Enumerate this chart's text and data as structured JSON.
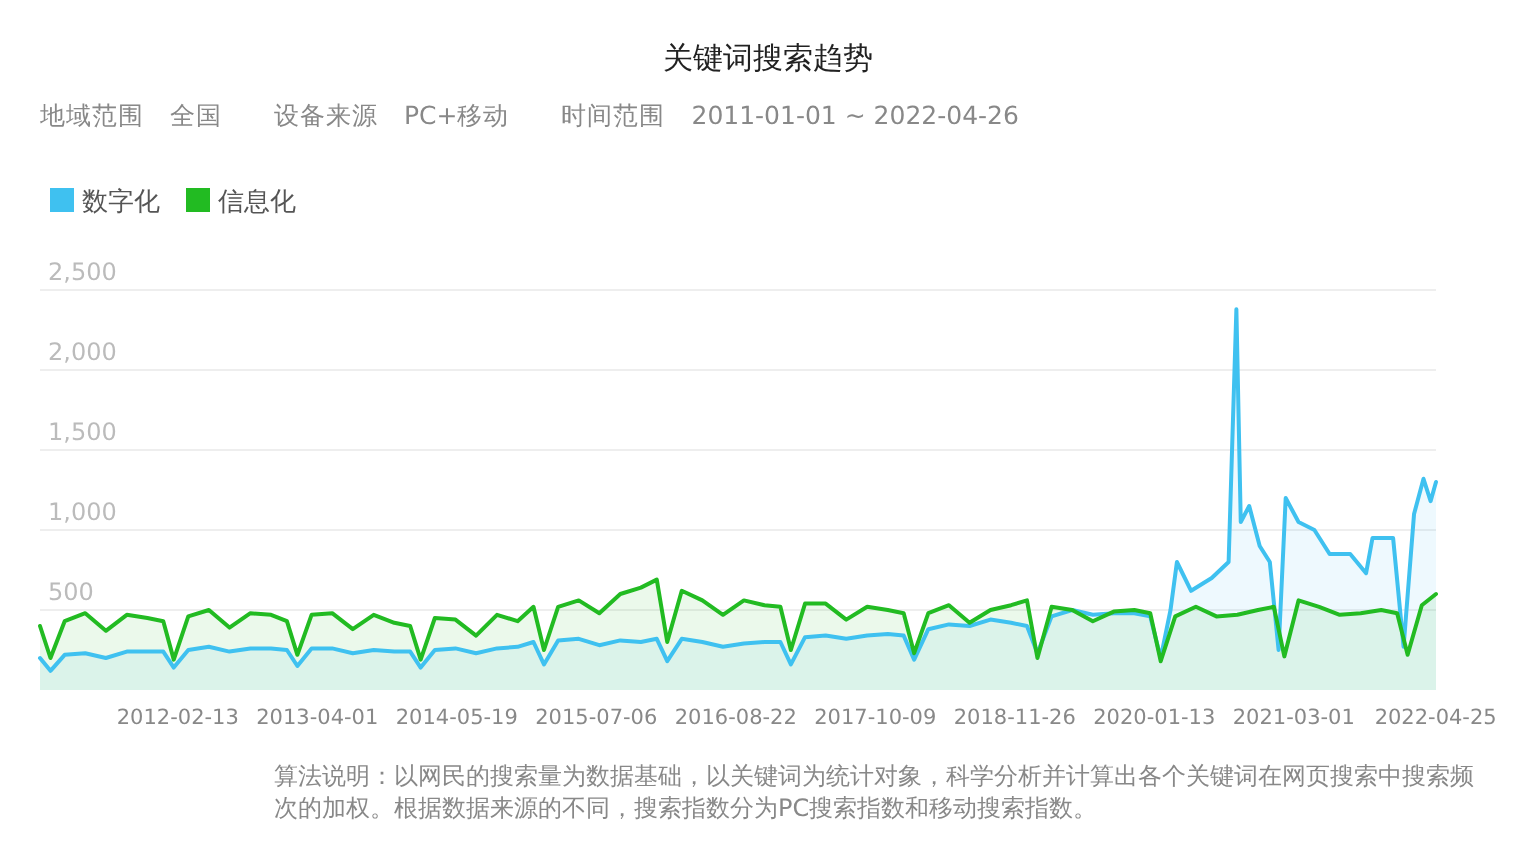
{
  "chart_data": {
    "type": "area",
    "title": "关键词搜索趋势",
    "subtitle": "地域范围　全国　　设备来源　PC+移动　　时间范围　2011-01-01 ~ 2022-04-26",
    "series": [
      {
        "name": "数字化",
        "color": "#3fc1f0",
        "x": [
          "2011-01-01",
          "2011-02-01",
          "2011-03-15",
          "2011-05-15",
          "2011-07-15",
          "2011-09-15",
          "2011-11-15",
          "2012-01-01",
          "2012-02-01",
          "2012-03-15",
          "2012-05-15",
          "2012-07-15",
          "2012-09-15",
          "2012-11-15",
          "2013-01-01",
          "2013-02-01",
          "2013-03-15",
          "2013-05-15",
          "2013-07-15",
          "2013-09-15",
          "2013-11-15",
          "2014-01-01",
          "2014-02-01",
          "2014-03-15",
          "2014-05-15",
          "2014-07-15",
          "2014-09-15",
          "2014-11-15",
          "2015-01-01",
          "2015-02-01",
          "2015-03-15",
          "2015-05-15",
          "2015-07-15",
          "2015-09-15",
          "2015-11-15",
          "2016-01-01",
          "2016-02-01",
          "2016-03-15",
          "2016-05-15",
          "2016-07-15",
          "2016-09-15",
          "2016-11-15",
          "2017-01-01",
          "2017-02-01",
          "2017-03-15",
          "2017-05-15",
          "2017-07-15",
          "2017-09-15",
          "2017-11-15",
          "2018-01-01",
          "2018-02-01",
          "2018-03-15",
          "2018-05-15",
          "2018-07-15",
          "2018-09-15",
          "2018-11-15",
          "2019-01-01",
          "2019-02-01",
          "2019-03-15",
          "2019-05-15",
          "2019-07-15",
          "2019-09-15",
          "2019-11-15",
          "2020-01-01",
          "2020-02-01",
          "2020-03-01",
          "2020-03-20",
          "2020-05-01",
          "2020-07-01",
          "2020-08-20",
          "2020-09-12",
          "2020-09-25",
          "2020-10-20",
          "2020-11-20",
          "2020-12-20",
          "2021-01-15",
          "2021-02-05",
          "2021-03-15",
          "2021-05-01",
          "2021-06-15",
          "2021-08-15",
          "2021-10-01",
          "2021-10-20",
          "2021-12-20",
          "2022-01-20",
          "2022-02-20",
          "2022-03-20",
          "2022-04-10",
          "2022-04-26"
        ],
        "values": [
          200,
          120,
          220,
          230,
          200,
          240,
          240,
          240,
          140,
          250,
          270,
          240,
          260,
          260,
          250,
          150,
          260,
          260,
          230,
          250,
          240,
          240,
          140,
          250,
          260,
          230,
          260,
          270,
          300,
          160,
          310,
          320,
          280,
          310,
          300,
          320,
          180,
          320,
          300,
          270,
          290,
          300,
          300,
          160,
          330,
          340,
          320,
          340,
          350,
          340,
          190,
          380,
          410,
          400,
          440,
          420,
          400,
          230,
          460,
          500,
          470,
          480,
          480,
          460,
          200,
          500,
          800,
          620,
          700,
          800,
          2380,
          1050,
          1150,
          900,
          800,
          250,
          1200,
          1050,
          1000,
          850,
          850,
          730,
          950,
          950,
          270,
          1100,
          1320,
          1180,
          1300
        ]
      },
      {
        "name": "信息化",
        "color": "#22bb22",
        "x": [
          "2011-01-01",
          "2011-02-01",
          "2011-03-15",
          "2011-05-15",
          "2011-07-15",
          "2011-09-15",
          "2011-11-15",
          "2012-01-01",
          "2012-02-01",
          "2012-03-15",
          "2012-05-15",
          "2012-07-15",
          "2012-09-15",
          "2012-11-15",
          "2013-01-01",
          "2013-02-01",
          "2013-03-15",
          "2013-05-15",
          "2013-07-15",
          "2013-09-15",
          "2013-11-15",
          "2014-01-01",
          "2014-02-01",
          "2014-03-15",
          "2014-05-15",
          "2014-07-15",
          "2014-09-15",
          "2014-11-15",
          "2015-01-01",
          "2015-02-01",
          "2015-03-15",
          "2015-05-15",
          "2015-07-15",
          "2015-09-15",
          "2015-11-15",
          "2016-01-01",
          "2016-02-01",
          "2016-03-15",
          "2016-05-15",
          "2016-07-15",
          "2016-09-15",
          "2016-11-15",
          "2017-01-01",
          "2017-02-01",
          "2017-03-15",
          "2017-05-15",
          "2017-07-15",
          "2017-09-15",
          "2017-11-15",
          "2018-01-01",
          "2018-02-01",
          "2018-03-15",
          "2018-05-15",
          "2018-07-15",
          "2018-09-15",
          "2018-11-15",
          "2019-01-01",
          "2019-02-01",
          "2019-03-15",
          "2019-05-15",
          "2019-07-15",
          "2019-09-15",
          "2019-11-15",
          "2020-01-01",
          "2020-02-01",
          "2020-03-15",
          "2020-05-15",
          "2020-07-15",
          "2020-09-15",
          "2020-11-15",
          "2021-01-01",
          "2021-02-01",
          "2021-03-15",
          "2021-05-15",
          "2021-07-15",
          "2021-09-15",
          "2021-11-15",
          "2022-01-01",
          "2022-02-01",
          "2022-03-15",
          "2022-04-26"
        ],
        "values": [
          400,
          200,
          430,
          480,
          370,
          470,
          450,
          430,
          190,
          460,
          500,
          390,
          480,
          470,
          430,
          220,
          470,
          480,
          380,
          470,
          420,
          400,
          190,
          450,
          440,
          340,
          470,
          430,
          520,
          250,
          520,
          560,
          480,
          600,
          640,
          690,
          300,
          620,
          560,
          470,
          560,
          530,
          520,
          250,
          540,
          540,
          440,
          520,
          500,
          480,
          230,
          480,
          530,
          420,
          500,
          530,
          560,
          200,
          520,
          500,
          430,
          490,
          500,
          480,
          180,
          460,
          520,
          460,
          470,
          500,
          520,
          210,
          560,
          520,
          470,
          480,
          500,
          480,
          220,
          530,
          600
        ]
      }
    ],
    "xlim": [
      "2011-01-01",
      "2022-04-26"
    ],
    "xticks": [
      "2012-02-13",
      "2013-04-01",
      "2014-05-19",
      "2015-07-06",
      "2016-08-22",
      "2017-10-09",
      "2018-11-26",
      "2020-01-13",
      "2021-03-01",
      "2022-04-25"
    ],
    "ylim": [
      0,
      2500
    ],
    "yticks": [
      500,
      {
        "value": 1000,
        "label": "1,000"
      },
      {
        "value": 1500,
        "label": "1,500"
      },
      {
        "value": 2000,
        "label": "2,000"
      },
      {
        "value": 2500,
        "label": "2,500"
      }
    ],
    "grid": "y",
    "legend": "top left",
    "marker": "none",
    "line_style": "solid",
    "annotations": [
      "算法说明：以网民的搜索量为数据基础，以关键词为统计对象，科学分析并计算出各个关键词在网页搜索中搜索频次的加权。根据数据来源的不同，搜索指数分为PC搜索指数和移动搜索指数。"
    ]
  }
}
